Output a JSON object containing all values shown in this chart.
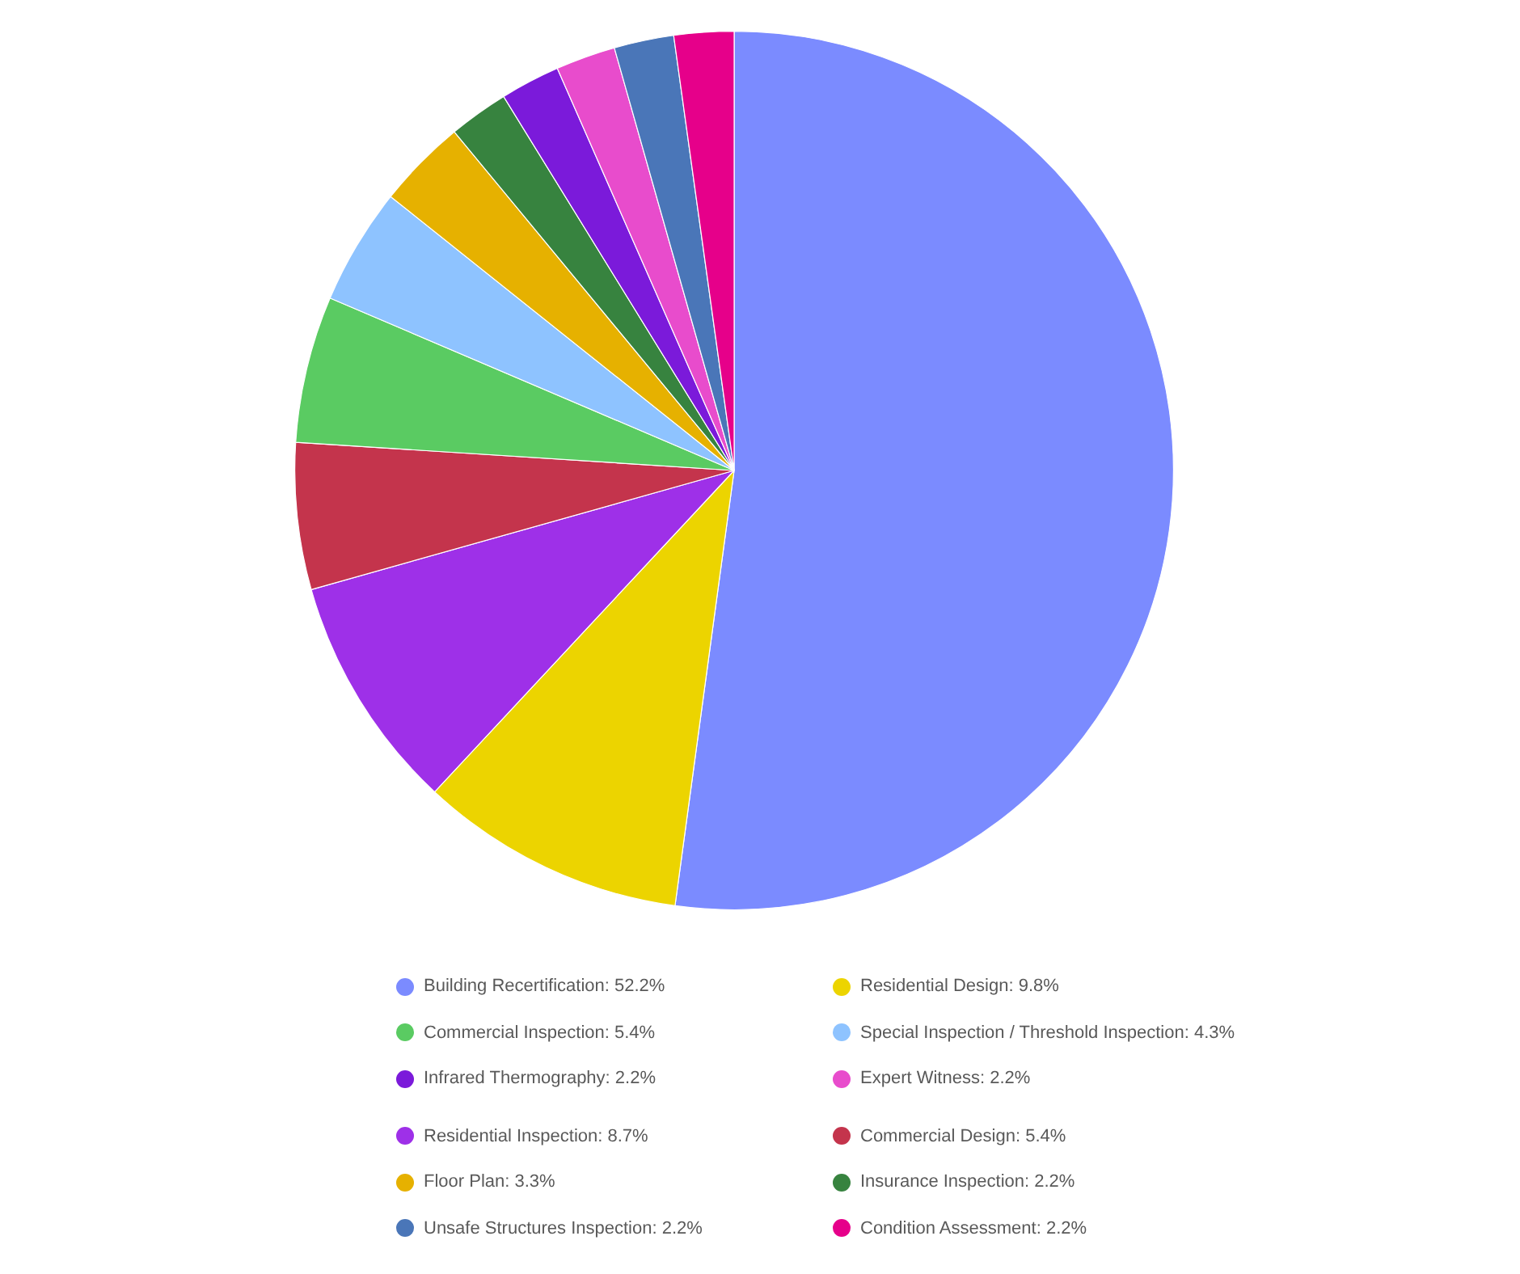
{
  "chart_data": {
    "type": "pie",
    "categories": [
      "Building Recertification",
      "Residential Design",
      "Residential Inspection",
      "Commercial Design",
      "Commercial Inspection",
      "Special Inspection / Threshold Inspection",
      "Floor Plan",
      "Insurance Inspection",
      "Infrared Thermography",
      "Expert Witness",
      "Unsafe Structures Inspection",
      "Condition Assessment"
    ],
    "values": [
      52.2,
      9.8,
      8.7,
      5.4,
      5.4,
      4.3,
      3.3,
      2.2,
      2.2,
      2.2,
      2.2,
      2.2
    ],
    "value_labels": [
      "52.2%",
      "9.8%",
      "8.7%",
      "5.4%",
      "5.4%",
      "4.3%",
      "3.3%",
      "2.2%",
      "2.2%",
      "2.2%",
      "2.2%",
      "2.2%"
    ],
    "colors": [
      "#7b8bff",
      "#ecd400",
      "#9e30e8",
      "#c4344c",
      "#5acb62",
      "#8ec3ff",
      "#e6b100",
      "#37833f",
      "#7b1ada",
      "#e84ccc",
      "#4a76b8",
      "#e6008a"
    ],
    "legend": "bottom"
  }
}
